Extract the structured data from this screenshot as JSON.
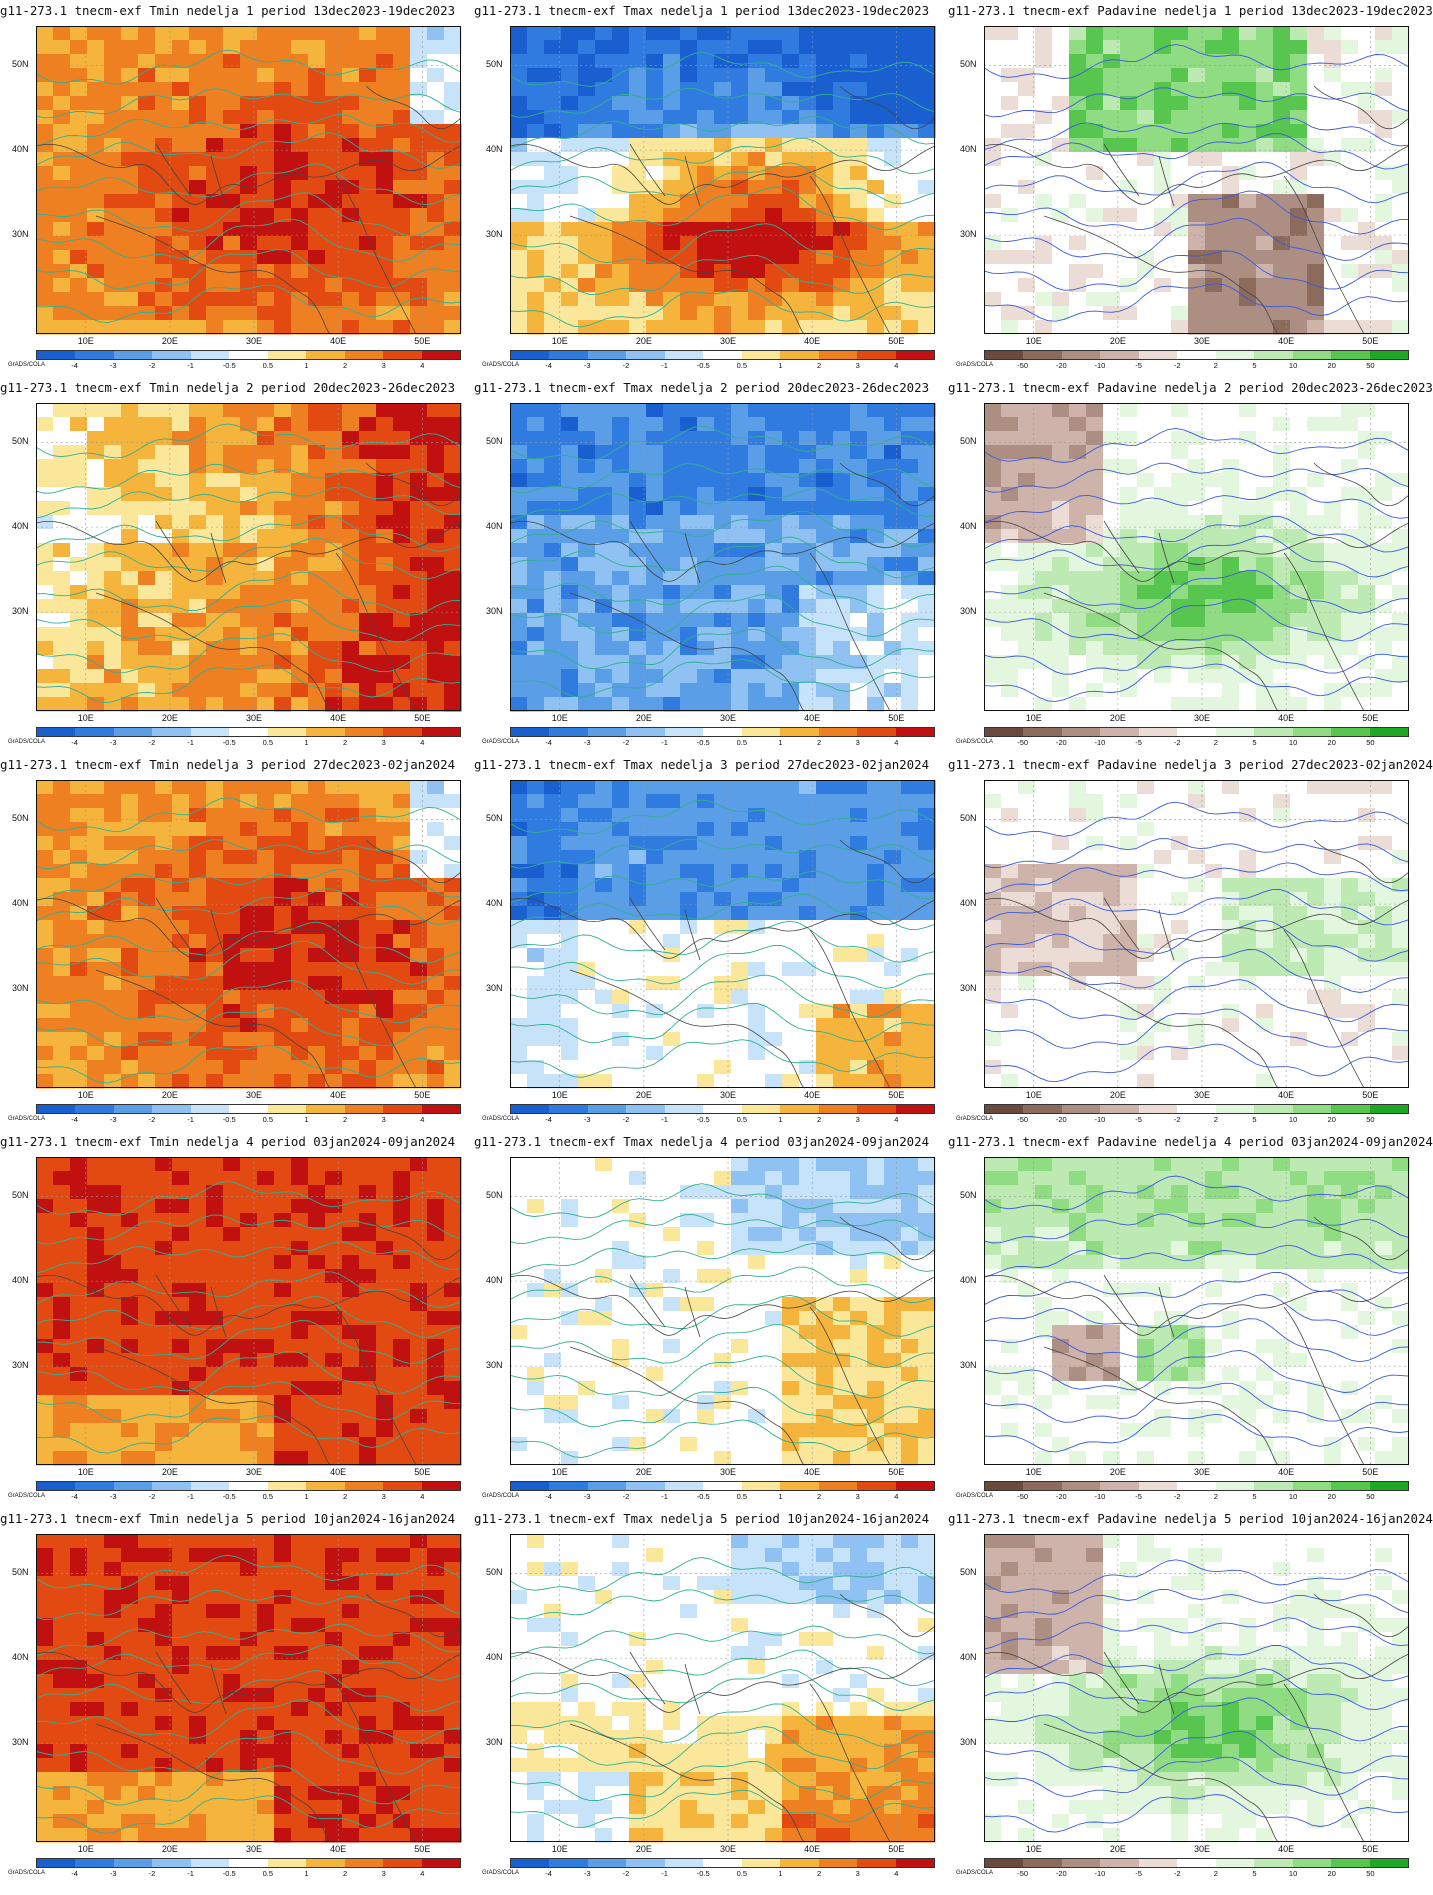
{
  "credit": "GrADS/COLA",
  "lat_labels": [
    "50N",
    "40N",
    "30N"
  ],
  "lon_labels": [
    "10E",
    "20E",
    "30E",
    "40E",
    "50E"
  ],
  "temp_scale": {
    "ticks": [
      "-4",
      "-3",
      "-2",
      "-1",
      "-0.5",
      "0.5",
      "1",
      "2",
      "3",
      "4"
    ],
    "colors": [
      "#1a5fd0",
      "#2f7be0",
      "#5a9ee8",
      "#8fc2f2",
      "#c6e3fa",
      "#ffffff",
      "#fbe79a",
      "#f5b53c",
      "#ef8022",
      "#e34a12",
      "#c01010"
    ]
  },
  "precip_scale": {
    "ticks": [
      "-50",
      "-20",
      "-10",
      "-5",
      "-2",
      "2",
      "5",
      "10",
      "20",
      "50"
    ],
    "colors": [
      "#6b4a3e",
      "#8c6a5c",
      "#ad8e82",
      "#cdb3a9",
      "#ecdcd6",
      "#ffffff",
      "#e3f6de",
      "#bdeab3",
      "#8fdc82",
      "#57c64e",
      "#1fa823"
    ]
  },
  "panels": [
    {
      "title": "g11-273.1 tnecm-exf Tmin nedelja 1 period 13dec2023-19dec2023",
      "kind": "tmin",
      "anomaly": "warm-strong"
    },
    {
      "title": "g11-273.1 tnecm-exf Tmax nedelja 1 period 13dec2023-19dec2023",
      "kind": "tmax",
      "anomaly": "mixed-cold-north"
    },
    {
      "title": "g11-273.1 tnecm-exf Padavine nedelja 1 period 13dec2023-19dec2023",
      "kind": "precip",
      "anomaly": "wet-north"
    },
    {
      "title": "g11-273.1 tnecm-exf Tmin nedelja 2 period 20dec2023-26dec2023",
      "kind": "tmin",
      "anomaly": "warm-east"
    },
    {
      "title": "g11-273.1 tnecm-exf Tmax nedelja 2 period 20dec2023-26dec2023",
      "kind": "tmax",
      "anomaly": "cold"
    },
    {
      "title": "g11-273.1 tnecm-exf Padavine nedelja 2 period 20dec2023-26dec2023",
      "kind": "precip",
      "anomaly": "wet-central"
    },
    {
      "title": "g11-273.1 tnecm-exf Tmin nedelja 3 period 27dec2023-02jan2024",
      "kind": "tmin",
      "anomaly": "warm-strong"
    },
    {
      "title": "g11-273.1 tnecm-exf Tmax nedelja 3 period 27dec2023-02jan2024",
      "kind": "tmax",
      "anomaly": "cold-north"
    },
    {
      "title": "g11-273.1 tnecm-exf Padavine nedelja 3 period 27dec2023-02jan2024",
      "kind": "precip",
      "anomaly": "weak"
    },
    {
      "title": "g11-273.1 tnecm-exf Tmin nedelja 4 period 03jan2024-09jan2024",
      "kind": "tmin",
      "anomaly": "very-warm"
    },
    {
      "title": "g11-273.1 tnecm-exf Tmax nedelja 4 period 03jan2024-09jan2024",
      "kind": "tmax",
      "anomaly": "neutral"
    },
    {
      "title": "g11-273.1 tnecm-exf Padavine nedelja 4 period 03jan2024-09jan2024",
      "kind": "precip",
      "anomaly": "wet-northwest"
    },
    {
      "title": "g11-273.1 tnecm-exf Tmin nedelja 5 period 10jan2024-16jan2024",
      "kind": "tmin",
      "anomaly": "very-warm"
    },
    {
      "title": "g11-273.1 tnecm-exf Tmax nedelja 5 period 10jan2024-16jan2024",
      "kind": "tmax",
      "anomaly": "warm-south"
    },
    {
      "title": "g11-273.1 tnecm-exf Padavine nedelja 5 period 10jan2024-16jan2024",
      "kind": "precip",
      "anomaly": "wet-central"
    }
  ]
}
